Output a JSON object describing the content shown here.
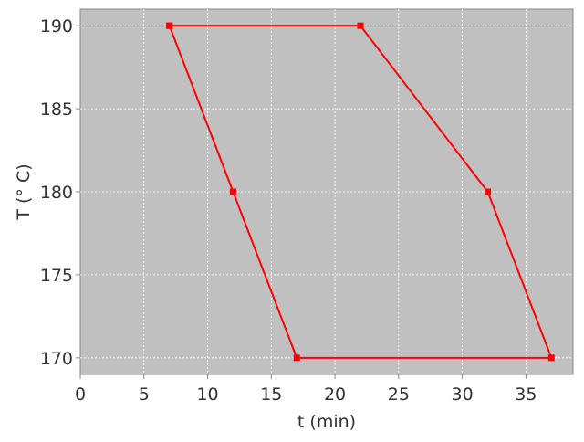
{
  "chart_data": {
    "type": "line",
    "title": "",
    "xlabel": "t (min)",
    "ylabel": "T (° C)",
    "xlim": [
      0,
      38.7
    ],
    "ylim": [
      169,
      191
    ],
    "xticks": [
      0,
      5,
      10,
      15,
      20,
      25,
      30,
      35
    ],
    "yticks": [
      170,
      175,
      180,
      185,
      190
    ],
    "grid": true,
    "background": "#c0c0c0",
    "series": [
      {
        "color": "#ff0000",
        "marker": "square",
        "x": [
          7,
          22,
          32,
          37,
          17,
          12,
          7
        ],
        "y": [
          190,
          190,
          180,
          170,
          170,
          180,
          190
        ]
      }
    ]
  }
}
